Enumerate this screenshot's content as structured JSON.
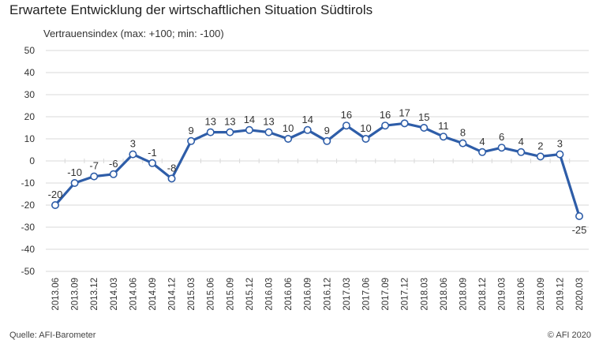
{
  "title": "Erwartete Entwicklung der wirtschaftlichen Situation Südtirols",
  "subtitle": "Vertrauensindex (max: +100; min: -100)",
  "footer": {
    "source": "Quelle: AFI-Barometer",
    "copyright": "© AFI 2020"
  },
  "colors": {
    "line": "#2E5DA8",
    "grid": "#D9D9D9",
    "marker_fill": "#FFFFFF"
  },
  "chart_data": {
    "type": "line",
    "title": "Erwartete Entwicklung der wirtschaftlichen Situation Südtirols",
    "ylabel": "Vertrauensindex (max: +100; min: -100)",
    "xlabel": "",
    "ylim": [
      -50,
      50
    ],
    "yticks": [
      50,
      40,
      30,
      20,
      10,
      0,
      -10,
      -20,
      -30,
      -40,
      -50
    ],
    "grid": true,
    "legend": "none",
    "categories": [
      "2013.06",
      "2013.09",
      "2013.12",
      "2014.03",
      "2014.06",
      "2014.09",
      "2014.12",
      "2015.03",
      "2015.06",
      "2015.09",
      "2015.12",
      "2016.03",
      "2016.06",
      "2016.09",
      "2016.12",
      "2017.03",
      "2017.06",
      "2017.09",
      "2017.12",
      "2018.03",
      "2018.06",
      "2018.09",
      "2018.12",
      "2019.03",
      "2019.06",
      "2019.09",
      "2019.12",
      "2020.03"
    ],
    "series": [
      {
        "values": [
          -20,
          -10,
          -7,
          -6,
          3,
          -1,
          -8,
          9,
          13,
          13,
          14,
          13,
          10,
          14,
          9,
          16,
          10,
          16,
          17,
          15,
          11,
          8,
          4,
          6,
          4,
          2,
          3,
          -25
        ]
      }
    ]
  }
}
